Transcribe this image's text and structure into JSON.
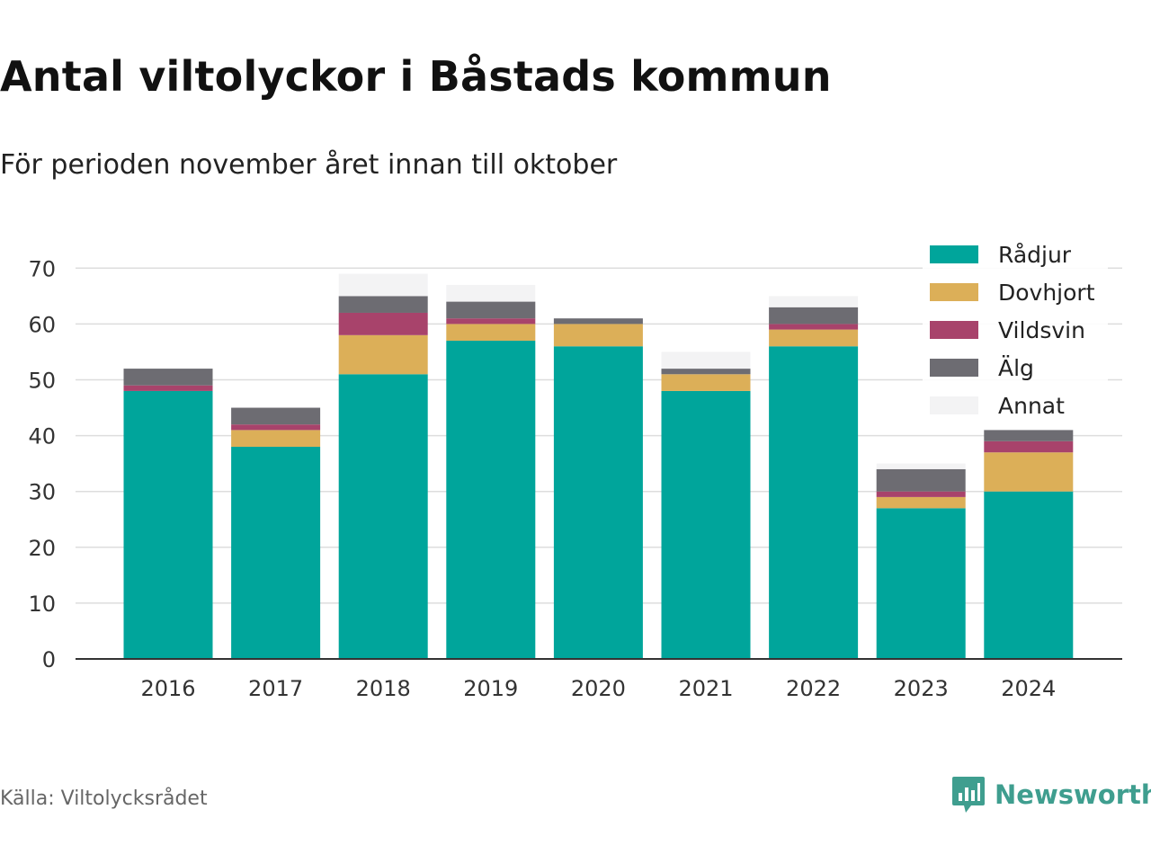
{
  "chart_data": {
    "type": "bar",
    "stacked": true,
    "title": "Antal viltolyckor i Båstads kommun",
    "subtitle": "För perioden november året innan till oktober",
    "categories": [
      "2016",
      "2017",
      "2018",
      "2019",
      "2020",
      "2021",
      "2022",
      "2023",
      "2024"
    ],
    "series": [
      {
        "name": "Rådjur",
        "color": "#00a59b",
        "values": [
          48,
          38,
          51,
          57,
          56,
          48,
          56,
          27,
          30
        ]
      },
      {
        "name": "Dovhjort",
        "color": "#dcaf58",
        "values": [
          0,
          3,
          7,
          3,
          4,
          3,
          3,
          2,
          7
        ]
      },
      {
        "name": "Vildsvin",
        "color": "#a8436b",
        "values": [
          1,
          1,
          4,
          1,
          0,
          0,
          1,
          1,
          2
        ]
      },
      {
        "name": "Älg",
        "color": "#6d6c72",
        "values": [
          3,
          3,
          3,
          3,
          1,
          1,
          3,
          4,
          2
        ]
      },
      {
        "name": "Annat",
        "color": "#f3f3f4",
        "values": [
          0,
          0,
          4,
          3,
          0,
          3,
          2,
          1,
          0
        ]
      }
    ],
    "yticks": [
      0,
      10,
      20,
      30,
      40,
      50,
      60,
      70
    ],
    "ylim": [
      0,
      70
    ],
    "grid": true,
    "legend_position": "top-right"
  },
  "source": "Källa: Viltolycksrådet",
  "brand": "Newsworthy"
}
